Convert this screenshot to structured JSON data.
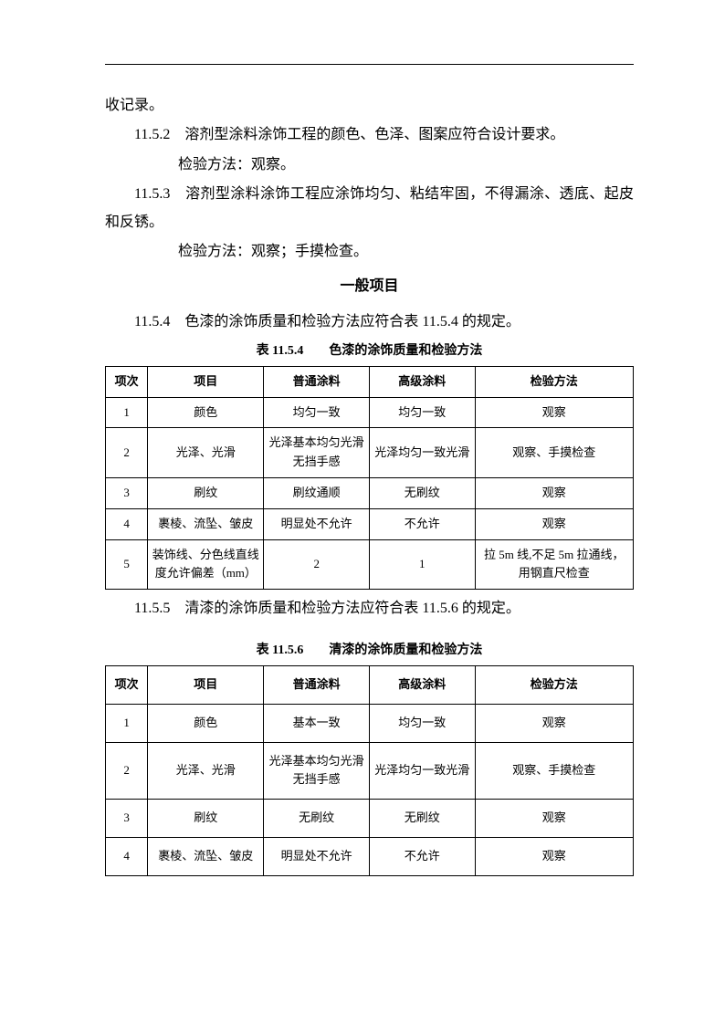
{
  "paragraphs": {
    "p1": "收记录。",
    "p2": "11.5.2　溶剂型涂料涂饰工程的颜色、色泽、图案应符合设计要求。",
    "p3": "检验方法：观察。",
    "p4": "11.5.3　溶剂型涂料涂饰工程应涂饰均匀、粘结牢固，不得漏涂、透底、起皮和反锈。",
    "p5": "检验方法：观察；手摸检查。"
  },
  "section_title": "一般项目",
  "p6": "11.5.4　色漆的涂饰质量和检验方法应符合表 11.5.4 的规定。",
  "table1": {
    "caption": "表 11.5.4　　色漆的涂饰质量和检验方法",
    "headers": {
      "h1": "项次",
      "h2": "项目",
      "h3": "普通涂料",
      "h4": "高级涂料",
      "h5": "检验方法"
    },
    "rows": [
      {
        "c1": "1",
        "c2": "颜色",
        "c3": "均匀一致",
        "c4": "均匀一致",
        "c5": "观察"
      },
      {
        "c1": "2",
        "c2": "光泽、光滑",
        "c3": "光泽基本均匀光滑无挡手感",
        "c4": "光泽均匀一致光滑",
        "c5": "观察、手摸检查"
      },
      {
        "c1": "3",
        "c2": "刷纹",
        "c3": "刷纹通顺",
        "c4": "无刷纹",
        "c5": "观察"
      },
      {
        "c1": "4",
        "c2": "裹棱、流坠、皱皮",
        "c3": "明显处不允许",
        "c4": "不允许",
        "c5": "观察"
      },
      {
        "c1": "5",
        "c2": "装饰线、分色线直线度允许偏差（mm）",
        "c3": "2",
        "c4": "1",
        "c5": "拉 5m 线,不足 5m 拉通线，用钢直尺检查"
      }
    ]
  },
  "p7": "11.5.5　清漆的涂饰质量和检验方法应符合表 11.5.6 的规定。",
  "table2": {
    "caption": "表 11.5.6　　清漆的涂饰质量和检验方法",
    "headers": {
      "h1": "项次",
      "h2": "项目",
      "h3": "普通涂料",
      "h4": "高级涂料",
      "h5": "检验方法"
    },
    "rows": [
      {
        "c1": "1",
        "c2": "颜色",
        "c3": "基本一致",
        "c4": "均匀一致",
        "c5": "观察"
      },
      {
        "c1": "2",
        "c2": "光泽、光滑",
        "c3": "光泽基本均匀光滑无挡手感",
        "c4": "光泽均匀一致光滑",
        "c5": "观察、手摸检查"
      },
      {
        "c1": "3",
        "c2": "刷纹",
        "c3": "无刷纹",
        "c4": "无刷纹",
        "c5": "观察"
      },
      {
        "c1": "4",
        "c2": "裹棱、流坠、皱皮",
        "c3": "明显处不允许",
        "c4": "不允许",
        "c5": "观察"
      }
    ]
  }
}
